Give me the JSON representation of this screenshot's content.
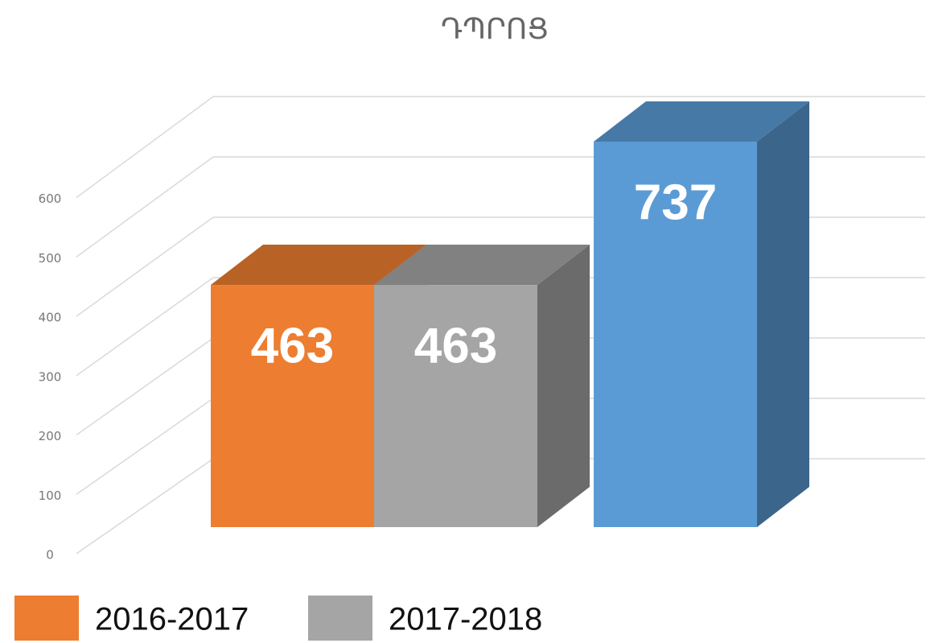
{
  "chart_data": {
    "type": "bar3d",
    "title": "ԴՊՐՈՑ",
    "series": [
      {
        "name": "2016-2017",
        "color": "#ed7d31",
        "values": [
          463
        ]
      },
      {
        "name": "2017-2018",
        "color": "#a5a5a5",
        "values": [
          463
        ]
      },
      {
        "name": null,
        "color": "#5b9bd5",
        "values": [
          737
        ]
      }
    ],
    "ylim": [
      0,
      800
    ],
    "yticks": [
      0,
      100,
      200,
      300,
      400,
      500,
      600
    ],
    "grid": true,
    "legend": "bottom"
  }
}
